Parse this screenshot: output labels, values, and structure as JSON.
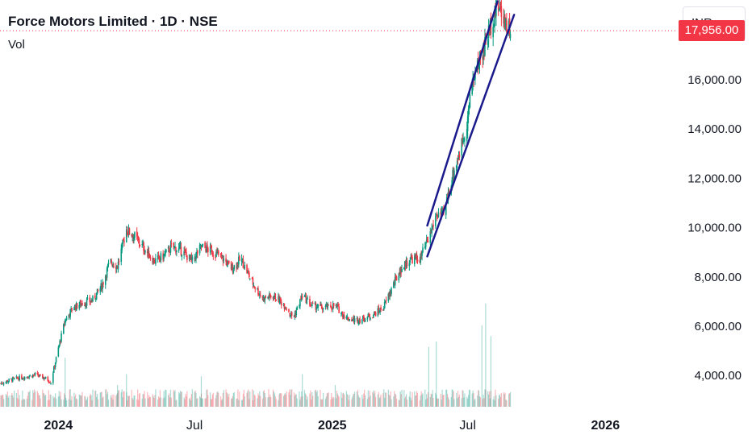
{
  "header": {
    "title": "Force Motors Limited · 1D · NSE",
    "volume_label": "Vol",
    "currency": "INR"
  },
  "price_scale": {
    "last_price": "17,956.00",
    "last_price_color": "#f23645"
  },
  "colors": {
    "up": "#089981",
    "down": "#f23645",
    "channel": "#1a1a8c",
    "axis_text": "#131722"
  },
  "chart_data": {
    "type": "candlestick",
    "title": "Force Motors Limited · 1D · NSE",
    "xlabel": "",
    "ylabel": "",
    "x_ticks": [
      "2024",
      "Jul",
      "2025",
      "Jul",
      "2026"
    ],
    "x_tick_positions": [
      "2024-01-01",
      "2024-07-01",
      "2025-01-01",
      "2025-07-01",
      "2026-01-01"
    ],
    "y_ticks": [
      4000,
      6000,
      8000,
      10000,
      12000,
      14000,
      16000
    ],
    "y_tick_labels": [
      "4,000.00",
      "6,000.00",
      "8,000.00",
      "10,000.00",
      "12,000.00",
      "14,000.00",
      "16,000.00"
    ],
    "ylim": [
      2700,
      19200
    ],
    "xlim": [
      "2023-10-15",
      "2026-03-15"
    ],
    "last_price": 17956,
    "price_path": [
      [
        "2023-10-16",
        3650
      ],
      [
        "2023-10-30",
        3800
      ],
      [
        "2023-11-15",
        3900
      ],
      [
        "2023-12-01",
        4000
      ],
      [
        "2023-12-15",
        3850
      ],
      [
        "2023-12-22",
        3700
      ],
      [
        "2024-01-02",
        5200
      ],
      [
        "2024-01-10",
        6200
      ],
      [
        "2024-01-20",
        6700
      ],
      [
        "2024-02-01",
        6900
      ],
      [
        "2024-02-15",
        7000
      ],
      [
        "2024-02-28",
        7600
      ],
      [
        "2024-03-10",
        8600
      ],
      [
        "2024-03-20",
        8400
      ],
      [
        "2024-04-01",
        9900
      ],
      [
        "2024-04-12",
        9600
      ],
      [
        "2024-04-25",
        9100
      ],
      [
        "2024-05-08",
        8600
      ],
      [
        "2024-05-20",
        8800
      ],
      [
        "2024-06-01",
        9200
      ],
      [
        "2024-06-15",
        9000
      ],
      [
        "2024-06-28",
        8600
      ],
      [
        "2024-07-10",
        9200
      ],
      [
        "2024-07-25",
        9000
      ],
      [
        "2024-08-05",
        8800
      ],
      [
        "2024-08-20",
        8300
      ],
      [
        "2024-09-01",
        8700
      ],
      [
        "2024-09-15",
        7800
      ],
      [
        "2024-09-30",
        7100
      ],
      [
        "2024-10-15",
        7200
      ],
      [
        "2024-10-30",
        6800
      ],
      [
        "2024-11-10",
        6300
      ],
      [
        "2024-11-22",
        7200
      ],
      [
        "2024-12-05",
        6800
      ],
      [
        "2024-12-20",
        6700
      ],
      [
        "2025-01-05",
        6800
      ],
      [
        "2025-01-20",
        6300
      ],
      [
        "2025-02-01",
        6200
      ],
      [
        "2025-02-15",
        6300
      ],
      [
        "2025-02-28",
        6500
      ],
      [
        "2025-03-10",
        6700
      ],
      [
        "2025-03-20",
        7400
      ],
      [
        "2025-04-01",
        8200
      ],
      [
        "2025-04-15",
        8700
      ],
      [
        "2025-04-28",
        8700
      ],
      [
        "2025-05-10",
        9500
      ],
      [
        "2025-05-20",
        10500
      ],
      [
        "2025-05-30",
        10500
      ],
      [
        "2025-06-10",
        12000
      ],
      [
        "2025-06-20",
        13000
      ],
      [
        "2025-06-30",
        14200
      ],
      [
        "2025-07-08",
        16000
      ],
      [
        "2025-07-20",
        17000
      ],
      [
        "2025-08-01",
        18200
      ],
      [
        "2025-08-10",
        19000
      ],
      [
        "2025-08-18",
        18500
      ],
      [
        "2025-08-27",
        17956
      ]
    ],
    "channel_lines": [
      {
        "name": "",
        "from": [
          "2025-05-08",
          10050
        ],
        "to": [
          "2025-08-10",
          19150
        ]
      },
      {
        "name": "",
        "from": [
          "2025-05-08",
          8800
        ],
        "to": [
          "2025-09-01",
          18600
        ]
      }
    ],
    "volume_spikes": [
      [
        "2024-01-10",
        0.45
      ],
      [
        "2024-03-20",
        0.2
      ],
      [
        "2024-04-01",
        0.3
      ],
      [
        "2024-07-10",
        0.28
      ],
      [
        "2024-11-22",
        0.3
      ],
      [
        "2025-01-05",
        0.2
      ],
      [
        "2025-05-10",
        0.55
      ],
      [
        "2025-05-20",
        0.6
      ],
      [
        "2025-07-20",
        0.75
      ],
      [
        "2025-07-25",
        0.95
      ],
      [
        "2025-08-01",
        0.65
      ]
    ],
    "grid": false,
    "legend": "none"
  }
}
